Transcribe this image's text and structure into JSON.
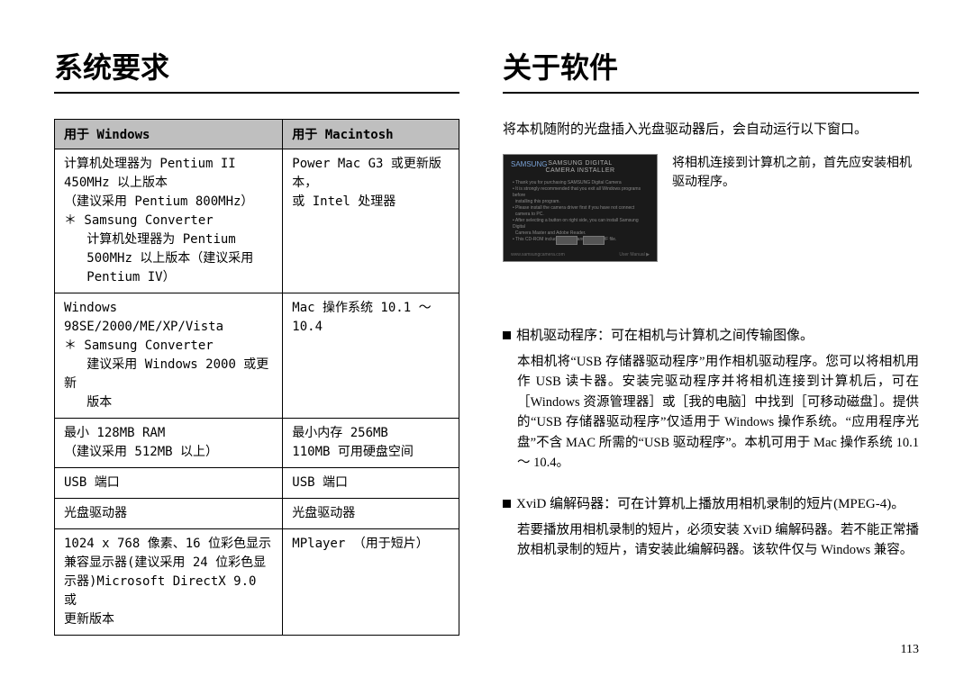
{
  "left": {
    "heading": "系统要求",
    "table": {
      "header_win": "用于 Windows",
      "header_mac": "用于 Macintosh",
      "rows": [
        {
          "win": "计算机处理器为 Pentium II\n450MHz 以上版本\n（建议采用 Pentium 800MHz）\n＊ Samsung Converter\n   计算机处理器为 Pentium\n   500MHz 以上版本（建议采用\n   Pentium IV）",
          "mac": "Power Mac G3 或更新版本，\n或 Intel 处理器"
        },
        {
          "win": "Windows 98SE/2000/ME/XP/Vista\n＊ Samsung Converter\n   建议采用 Windows 2000 或更新\n   版本",
          "mac": "Mac 操作系统 10.1 ～ 10.4"
        },
        {
          "win": "最小 128MB RAM\n（建议采用 512MB 以上）",
          "mac": "最小内存 256MB\n110MB 可用硬盘空间"
        },
        {
          "win": "USB 端口",
          "mac": "USB 端口"
        },
        {
          "win": "光盘驱动器",
          "mac": "光盘驱动器"
        },
        {
          "win": "1024 x 768 像素、16 位彩色显示\n兼容显示器(建议采用 24 位彩色显\n示器)Microsoft DirectX 9.0 或\n更新版本",
          "mac": "MPlayer （用于短片）"
        }
      ]
    }
  },
  "right": {
    "heading": "关于软件",
    "intro": "将本机随附的光盘插入光盘驱动器后，会自动运行以下窗口。",
    "installer_brand": "SAMSUNG",
    "installer_title": "SAMSUNG DIGITAL CAMERA\nINSTALLER",
    "install_note": "将相机连接到计算机之前，首先应安装相机驱动程序。",
    "bullets": [
      {
        "head": "相机驱动程序：可在相机与计算机之间传输图像。",
        "body": "本相机将“USB 存储器驱动程序”用作相机驱动程序。您可以将相机用作 USB 读卡器。安装完驱动程序并将相机连接到计算机后，可在［Windows 资源管理器］或［我的电脑］中找到［可移动磁盘］。提供的“USB 存储器驱动程序”仅适用于 Windows 操作系统。“应用程序光盘”不含 MAC 所需的“USB 驱动程序”。本机可用于 Mac 操作系统 10.1 ～ 10.4。"
      },
      {
        "head": "XviD 编解码器：可在计算机上播放用相机录制的短片(MPEG-4)。",
        "body": "若要播放用相机录制的短片，必须安装 XviD 编解码器。若不能正常播放相机录制的短片，请安装此编解码器。该软件仅与 Windows 兼容。"
      }
    ]
  },
  "page_number": "113"
}
